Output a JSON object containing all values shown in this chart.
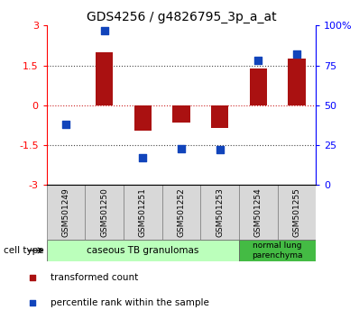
{
  "title": "GDS4256 / g4826795_3p_a_at",
  "samples": [
    "GSM501249",
    "GSM501250",
    "GSM501251",
    "GSM501252",
    "GSM501253",
    "GSM501254",
    "GSM501255"
  ],
  "transformed_count": [
    0.0,
    2.0,
    -0.95,
    -0.65,
    -0.85,
    1.4,
    1.75
  ],
  "percentile_rank": [
    38,
    97,
    17,
    23,
    22,
    78,
    82
  ],
  "ylim_left": [
    -3,
    3
  ],
  "ylim_right": [
    0,
    100
  ],
  "yticks_left": [
    -3,
    -1.5,
    0,
    1.5,
    3
  ],
  "ytick_labels_left": [
    "-3",
    "-1.5",
    "0",
    "1.5",
    "3"
  ],
  "yticks_right": [
    0,
    25,
    50,
    75,
    100
  ],
  "ytick_labels_right": [
    "0",
    "25",
    "50",
    "75",
    "100%"
  ],
  "bar_color": "#aa1111",
  "dot_color": "#1144bb",
  "hline_color": "#cc2222",
  "dotted_color": "#444444",
  "cell_types": [
    {
      "label": "caseous TB granulomas",
      "start": 0,
      "end": 4,
      "color": "#bbffbb"
    },
    {
      "label": "normal lung\nparenchyma",
      "start": 5,
      "end": 6,
      "color": "#44bb44"
    }
  ],
  "cell_type_label": "cell type",
  "legend_items": [
    {
      "color": "#aa1111",
      "label": "transformed count"
    },
    {
      "color": "#1144bb",
      "label": "percentile rank within the sample"
    }
  ],
  "sample_box_color": "#d8d8d8",
  "plot_bg": "#ffffff",
  "fig_bg": "#ffffff"
}
